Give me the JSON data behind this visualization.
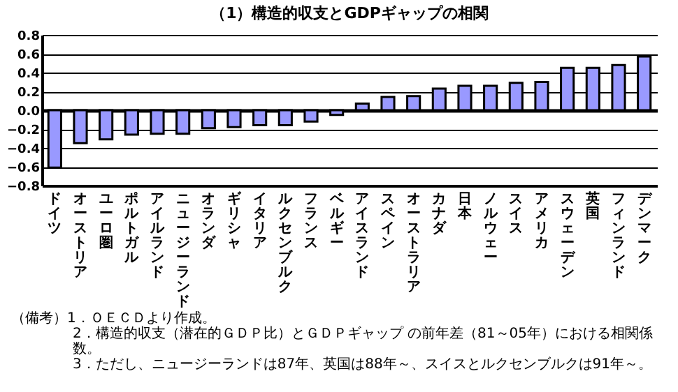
{
  "chart_data": {
    "type": "bar",
    "title": "（1）構造的収支とGDPギャップの相関",
    "categories": [
      "ドイツ",
      "オーストリア",
      "ユーロ圏",
      "ポルトガル",
      "アイルランド",
      "ニュージーランド",
      "オランダ",
      "ギリシャ",
      "イタリア",
      "ルクセンブルク",
      "フランス",
      "ベルギー",
      "アイスランド",
      "スペイン",
      "オーストラリア",
      "カナダ",
      "日本",
      "ノルウェー",
      "スイス",
      "アメリカ",
      "スウェーデン",
      "英国",
      "フィンランド",
      "デンマーク"
    ],
    "values": [
      -0.61,
      -0.35,
      -0.31,
      -0.26,
      -0.25,
      -0.25,
      -0.19,
      -0.18,
      -0.16,
      -0.16,
      -0.12,
      -0.05,
      0.07,
      0.14,
      0.15,
      0.23,
      0.26,
      0.26,
      0.29,
      0.3,
      0.45,
      0.45,
      0.48,
      0.57
    ],
    "color": "#9999ff",
    "ylim": [
      -0.8,
      0.8
    ],
    "yticks": [
      {
        "value": -0.8,
        "label": "−0.8"
      },
      {
        "value": -0.6,
        "label": "−0.6"
      },
      {
        "value": -0.4,
        "label": "−0.4"
      },
      {
        "value": -0.2,
        "label": "−0.2"
      },
      {
        "value": 0,
        "label": "0.0"
      },
      {
        "value": 0.2,
        "label": "0.2"
      },
      {
        "value": 0.4,
        "label": "0.4"
      },
      {
        "value": 0.6,
        "label": "0.6"
      },
      {
        "value": 0.8,
        "label": "0.8"
      }
    ],
    "grid": "y",
    "annotations": [
      "（備考）1．ＯＥＣＤより作成。",
      "2．構造的収支（潜在的ＧＤＰ比）とＧＤＰギャップ の前年差（81～05年）における相関係数。",
      "3．ただし、ニュージーランドは87年、英国は88年～、スイスとルクセンブルクは91年～。"
    ]
  }
}
